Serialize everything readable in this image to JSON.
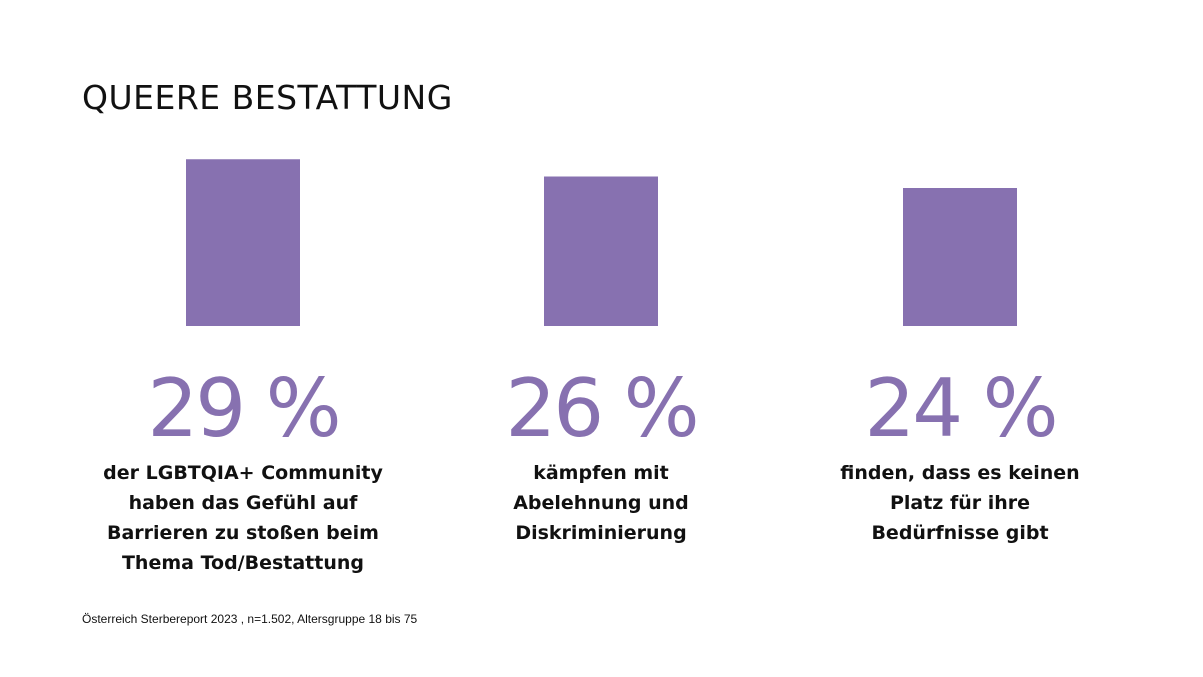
{
  "title": "QUEERE BESTATTUNG",
  "accent_color": "#8771B0",
  "chart_data": {
    "type": "bar",
    "title": "QUEERE BESTATTUNG",
    "categories": [
      "der LGBTQIA+ Community haben das Gefühl auf Barrieren zu stoßen beim Thema Tod/Bestattung",
      "kämpfen mit Abelehnung und Diskriminierung",
      "finden, dass es keinen Platz für ihre Bedürfnisse gibt"
    ],
    "values": [
      29,
      26,
      24
    ],
    "value_labels": [
      "29 %",
      "26 %",
      "24 %"
    ],
    "unit": "%",
    "xlabel": "",
    "ylabel": "",
    "grid": false,
    "source": "Österreich Sterbereport 2023 , n=1.502, Altersgruppe 18 bis 75"
  },
  "items": [
    {
      "value_label": "29 %",
      "lines": [
        "der LGBTQIA+ Community",
        "haben das Gefühl auf",
        "Barrieren zu stoßen beim",
        "Thema Tod/Bestattung"
      ]
    },
    {
      "value_label": "26 %",
      "lines": [
        "kämpfen mit",
        "Abelehnung und",
        "Diskriminierung"
      ]
    },
    {
      "value_label": "24 %",
      "lines": [
        "finden, dass es keinen",
        "Platz für ihre",
        "Bedürfnisse gibt"
      ]
    }
  ],
  "source": "Österreich Sterbereport 2023 , n=1.502, Altersgruppe 18 bis 75"
}
